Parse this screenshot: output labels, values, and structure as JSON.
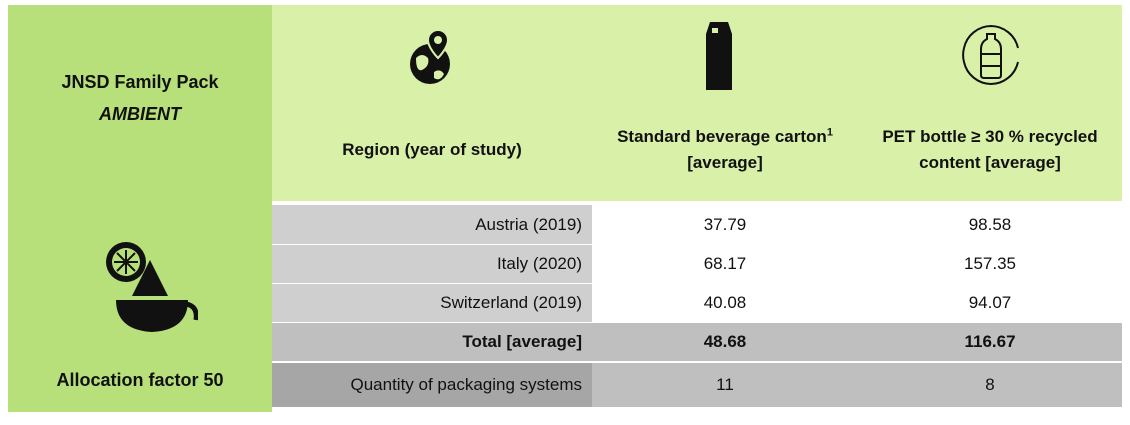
{
  "header": {
    "title": "JNSD Family Pack",
    "subtitle": "AMBIENT",
    "footer": "Allocation factor 50"
  },
  "table": {
    "columns": [
      {
        "label": "Region (year of study)"
      },
      {
        "label": "Standard beverage carton",
        "footnote": "1",
        "suffix": " [average]"
      },
      {
        "label": "PET bottle ≥ 30 % recycled content [average]"
      }
    ],
    "rows": [
      {
        "region": "Austria (2019)",
        "values": [
          37.79,
          98.58
        ]
      },
      {
        "region": "Italy (2020)",
        "values": [
          68.17,
          157.35
        ]
      },
      {
        "region": "Switzerland (2019)",
        "values": [
          40.08,
          94.07
        ]
      }
    ],
    "total": {
      "region": "Total [average]",
      "values": [
        48.68,
        116.67
      ]
    },
    "quantity": {
      "region": "Quantity of packaging systems",
      "values": [
        11,
        8
      ]
    }
  }
}
